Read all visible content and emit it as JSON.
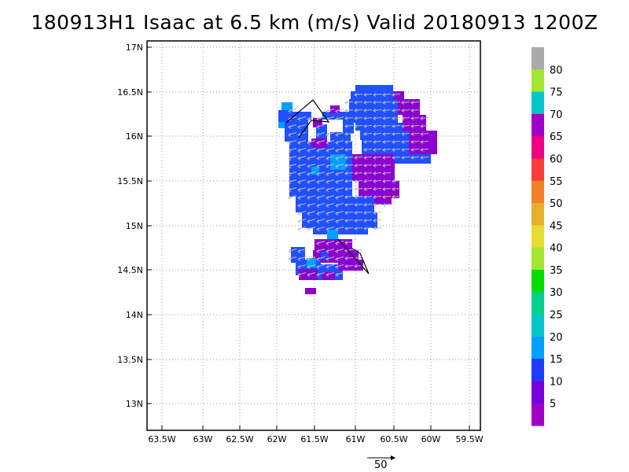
{
  "title": "180913H1 Isaac at 6.5 km (m/s) Valid 20180913  1200Z",
  "lat_labels": [
    "17N",
    "16.5N",
    "16N",
    "15.5N",
    "15N",
    "14.5N",
    "14N",
    "13.5N",
    "13N"
  ],
  "lon_labels": [
    "63.5W",
    "63W",
    "62.5W",
    "62W",
    "61.5W",
    "61W",
    "60.5W",
    "60W",
    "59.5W"
  ],
  "colorbar": {
    "labels": [
      "5",
      "10",
      "15",
      "20",
      "25",
      "30",
      "35",
      "40",
      "45",
      "50",
      "55",
      "60",
      "65",
      "70",
      "75",
      "80"
    ],
    "colors": [
      "#a000c8",
      "#7800dc",
      "#1e3cff",
      "#00a0ff",
      "#00c8c8",
      "#00d28c",
      "#00dc00",
      "#a0e632",
      "#e6dc32",
      "#e6af2d",
      "#f08228",
      "#fa3c3c",
      "#f00082",
      "#a000c8",
      "#00c8c8",
      "#a0e632",
      "#aaaaaa"
    ]
  },
  "scale_label": "50",
  "colors": {
    "blue": "#2050ff",
    "purple": "#8c00d0",
    "cyan": "#00a0ff"
  }
}
